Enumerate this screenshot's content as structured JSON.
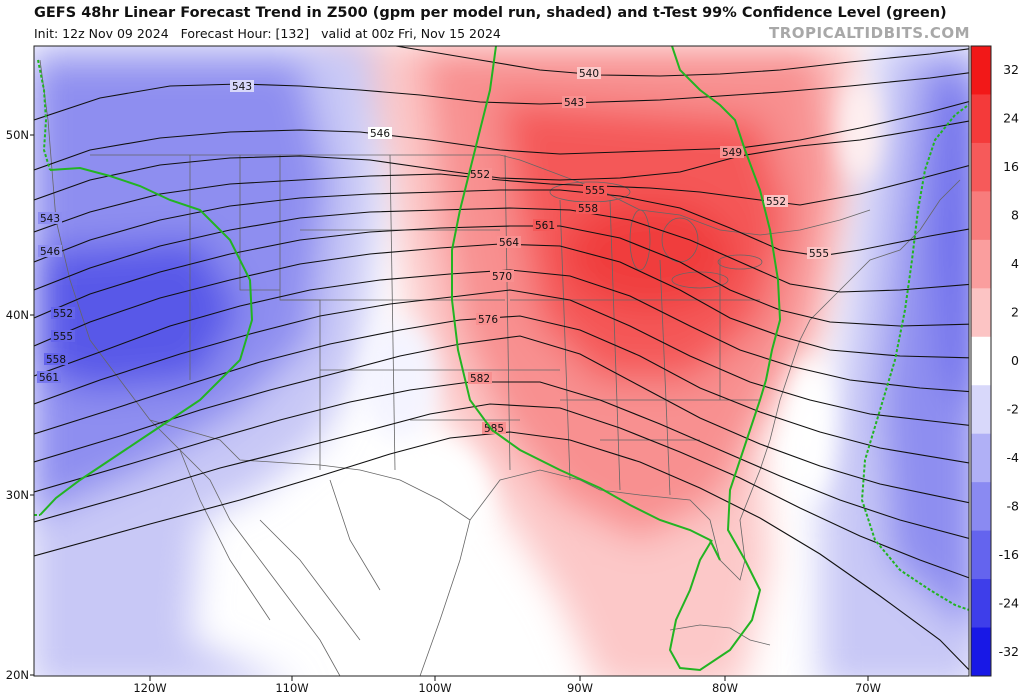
{
  "header": {
    "title": "GEFS 48hr Linear Forecast Trend in Z500 (gpm per model run, shaded) and t-Test 99% Confidence Level (green)",
    "init": "Init: 12z Nov 09 2024",
    "forecast_hour": "Forecast Hour: [132]",
    "valid": "valid at 00z Fri, Nov 15 2024",
    "watermark": "TROPICALTIDBITS.COM"
  },
  "map": {
    "latitude_labels": [
      "50N",
      "40N",
      "30N",
      "20N"
    ],
    "longitude_labels": [
      "120W",
      "110W",
      "100W",
      "90W",
      "80W",
      "70W"
    ],
    "contour_values": [
      "540",
      "543",
      "546",
      "549",
      "552",
      "555",
      "558",
      "561",
      "564",
      "570",
      "576",
      "582",
      "585"
    ],
    "contour_labels_west": [
      "543",
      "546",
      "552",
      "555",
      "558",
      "561"
    ],
    "contour_labels_east": [
      "549",
      "552",
      "555"
    ],
    "colors": {
      "positive_strong": "#f23a3a",
      "positive_medium": "#f77c7c",
      "positive_light": "#fbc4c4",
      "negative_strong": "#4848e6",
      "negative_medium": "#7f7ff0",
      "negative_light": "#c9c9f8",
      "confidence_line": "#22b422",
      "contour_line": "#111111",
      "border_line": "#555555"
    }
  },
  "colorbar": {
    "labels": [
      "32",
      "24",
      "16",
      "8",
      "4",
      "2",
      "0",
      "-2",
      "-4",
      "-8",
      "-16",
      "-24",
      "-32"
    ],
    "colors": [
      "#f21818",
      "#f43a3a",
      "#f65a5a",
      "#f87c7c",
      "#fa9e9e",
      "#fcc4c4",
      "#ffffff",
      "#d8d8fa",
      "#b0b0f6",
      "#8a8af2",
      "#6464ee",
      "#3e3eea",
      "#1818e6"
    ]
  }
}
